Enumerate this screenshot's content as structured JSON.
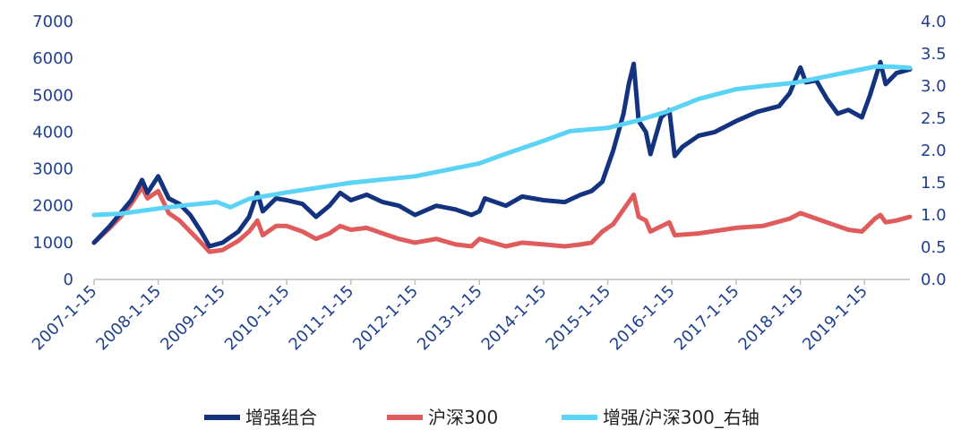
{
  "chart_data": {
    "type": "line",
    "title": "",
    "xlabel": "",
    "ylabel": "",
    "x_tick_labels": [
      "2007-1-15",
      "2008-1-15",
      "2009-1-15",
      "2010-1-15",
      "2011-1-15",
      "2012-1-15",
      "2013-1-15",
      "2014-1-15",
      "2015-1-15",
      "2016-1-15",
      "2017-1-15",
      "2018-1-15",
      "2019-1-15"
    ],
    "x_range": [
      "2007-01-15",
      "2019-09-30"
    ],
    "ylim_left": [
      0,
      7000
    ],
    "ylim_right": [
      0.0,
      4.0
    ],
    "left_ticks": [
      "0",
      "1000",
      "2000",
      "3000",
      "4000",
      "5000",
      "6000",
      "7000"
    ],
    "right_ticks": [
      "0.0",
      "0.5",
      "1.0",
      "1.5",
      "2.0",
      "2.5",
      "3.0",
      "3.5",
      "4.0"
    ],
    "grid": false,
    "legend_position": "bottom",
    "series": [
      {
        "name": "增强组合",
        "axis": "left",
        "color": "#14337f",
        "points": [
          [
            "2007-01-15",
            1000
          ],
          [
            "2007-04-15",
            1450
          ],
          [
            "2007-06-15",
            1800
          ],
          [
            "2007-08-15",
            2150
          ],
          [
            "2007-10-15",
            2700
          ],
          [
            "2007-11-15",
            2350
          ],
          [
            "2008-01-15",
            2800
          ],
          [
            "2008-03-15",
            2200
          ],
          [
            "2008-05-15",
            2050
          ],
          [
            "2008-07-15",
            1750
          ],
          [
            "2008-09-15",
            1300
          ],
          [
            "2008-11-01",
            900
          ],
          [
            "2009-01-15",
            1000
          ],
          [
            "2009-04-15",
            1300
          ],
          [
            "2009-06-15",
            1700
          ],
          [
            "2009-08-01",
            2350
          ],
          [
            "2009-09-01",
            1850
          ],
          [
            "2009-11-15",
            2200
          ],
          [
            "2010-01-15",
            2150
          ],
          [
            "2010-04-15",
            2050
          ],
          [
            "2010-07-01",
            1700
          ],
          [
            "2010-09-15",
            2000
          ],
          [
            "2010-11-15",
            2350
          ],
          [
            "2011-01-15",
            2150
          ],
          [
            "2011-04-15",
            2300
          ],
          [
            "2011-07-15",
            2100
          ],
          [
            "2011-10-15",
            2000
          ],
          [
            "2012-01-15",
            1750
          ],
          [
            "2012-05-15",
            2000
          ],
          [
            "2012-09-01",
            1900
          ],
          [
            "2012-12-01",
            1750
          ],
          [
            "2013-01-15",
            1850
          ],
          [
            "2013-02-15",
            2200
          ],
          [
            "2013-06-15",
            2000
          ],
          [
            "2013-09-15",
            2250
          ],
          [
            "2014-01-15",
            2150
          ],
          [
            "2014-05-15",
            2100
          ],
          [
            "2014-08-15",
            2300
          ],
          [
            "2014-10-15",
            2400
          ],
          [
            "2014-12-15",
            2650
          ],
          [
            "2015-02-15",
            3500
          ],
          [
            "2015-04-15",
            4500
          ],
          [
            "2015-05-15",
            5300
          ],
          [
            "2015-06-12",
            5850
          ],
          [
            "2015-07-10",
            4300
          ],
          [
            "2015-08-20",
            4000
          ],
          [
            "2015-09-15",
            3400
          ],
          [
            "2015-11-15",
            4400
          ],
          [
            "2015-12-31",
            4600
          ],
          [
            "2016-01-31",
            3350
          ],
          [
            "2016-03-15",
            3600
          ],
          [
            "2016-06-15",
            3900
          ],
          [
            "2016-09-15",
            4000
          ],
          [
            "2017-01-15",
            4300
          ],
          [
            "2017-05-15",
            4550
          ],
          [
            "2017-09-15",
            4700
          ],
          [
            "2017-11-15",
            5050
          ],
          [
            "2018-01-15",
            5750
          ],
          [
            "2018-02-15",
            5350
          ],
          [
            "2018-04-15",
            5400
          ],
          [
            "2018-06-15",
            4900
          ],
          [
            "2018-08-15",
            4500
          ],
          [
            "2018-10-15",
            4600
          ],
          [
            "2018-12-31",
            4400
          ],
          [
            "2019-02-15",
            5000
          ],
          [
            "2019-04-15",
            5900
          ],
          [
            "2019-05-15",
            5300
          ],
          [
            "2019-07-15",
            5600
          ],
          [
            "2019-09-30",
            5700
          ]
        ]
      },
      {
        "name": "沪深300",
        "axis": "left",
        "color": "#e05b5b",
        "points": [
          [
            "2007-01-15",
            1000
          ],
          [
            "2007-04-15",
            1400
          ],
          [
            "2007-06-15",
            1700
          ],
          [
            "2007-08-15",
            2050
          ],
          [
            "2007-10-15",
            2500
          ],
          [
            "2007-11-15",
            2200
          ],
          [
            "2008-01-15",
            2400
          ],
          [
            "2008-03-15",
            1800
          ],
          [
            "2008-05-15",
            1600
          ],
          [
            "2008-07-15",
            1300
          ],
          [
            "2008-09-15",
            1000
          ],
          [
            "2008-11-01",
            750
          ],
          [
            "2009-01-15",
            800
          ],
          [
            "2009-04-15",
            1050
          ],
          [
            "2009-06-15",
            1300
          ],
          [
            "2009-08-01",
            1600
          ],
          [
            "2009-09-01",
            1200
          ],
          [
            "2009-11-15",
            1450
          ],
          [
            "2010-01-15",
            1450
          ],
          [
            "2010-04-15",
            1300
          ],
          [
            "2010-07-01",
            1100
          ],
          [
            "2010-09-15",
            1250
          ],
          [
            "2010-11-15",
            1450
          ],
          [
            "2011-01-15",
            1350
          ],
          [
            "2011-04-15",
            1400
          ],
          [
            "2011-07-15",
            1250
          ],
          [
            "2011-10-15",
            1100
          ],
          [
            "2012-01-15",
            1000
          ],
          [
            "2012-05-15",
            1100
          ],
          [
            "2012-09-01",
            950
          ],
          [
            "2012-12-01",
            900
          ],
          [
            "2013-01-15",
            1100
          ],
          [
            "2013-06-15",
            900
          ],
          [
            "2013-09-15",
            1000
          ],
          [
            "2014-01-15",
            950
          ],
          [
            "2014-05-15",
            900
          ],
          [
            "2014-08-15",
            950
          ],
          [
            "2014-10-15",
            1000
          ],
          [
            "2014-12-15",
            1300
          ],
          [
            "2015-02-15",
            1500
          ],
          [
            "2015-04-15",
            1900
          ],
          [
            "2015-06-12",
            2300
          ],
          [
            "2015-07-10",
            1700
          ],
          [
            "2015-08-20",
            1600
          ],
          [
            "2015-09-15",
            1300
          ],
          [
            "2015-12-31",
            1550
          ],
          [
            "2016-01-31",
            1200
          ],
          [
            "2016-06-15",
            1250
          ],
          [
            "2017-01-15",
            1400
          ],
          [
            "2017-06-15",
            1450
          ],
          [
            "2017-11-15",
            1650
          ],
          [
            "2018-01-15",
            1800
          ],
          [
            "2018-04-15",
            1650
          ],
          [
            "2018-07-15",
            1500
          ],
          [
            "2018-10-15",
            1350
          ],
          [
            "2018-12-31",
            1300
          ],
          [
            "2019-03-15",
            1650
          ],
          [
            "2019-04-15",
            1750
          ],
          [
            "2019-05-15",
            1550
          ],
          [
            "2019-07-15",
            1600
          ],
          [
            "2019-09-30",
            1700
          ]
        ]
      },
      {
        "name": "增强/沪深300_右轴",
        "axis": "right",
        "color": "#5bd3f5",
        "points": [
          [
            "2007-01-15",
            1.0
          ],
          [
            "2007-06-15",
            1.02
          ],
          [
            "2008-01-15",
            1.1
          ],
          [
            "2008-06-15",
            1.15
          ],
          [
            "2008-12-15",
            1.2
          ],
          [
            "2009-03-01",
            1.12
          ],
          [
            "2009-06-15",
            1.25
          ],
          [
            "2010-01-15",
            1.35
          ],
          [
            "2011-01-15",
            1.5
          ],
          [
            "2012-01-15",
            1.6
          ],
          [
            "2013-01-15",
            1.8
          ],
          [
            "2013-06-15",
            1.95
          ],
          [
            "2014-01-15",
            2.15
          ],
          [
            "2014-06-15",
            2.3
          ],
          [
            "2015-01-15",
            2.35
          ],
          [
            "2015-06-15",
            2.45
          ],
          [
            "2015-12-15",
            2.6
          ],
          [
            "2016-06-15",
            2.8
          ],
          [
            "2017-01-15",
            2.95
          ],
          [
            "2017-06-15",
            3.0
          ],
          [
            "2017-12-15",
            3.05
          ],
          [
            "2018-06-15",
            3.15
          ],
          [
            "2018-12-15",
            3.25
          ],
          [
            "2019-03-15",
            3.3
          ],
          [
            "2019-06-15",
            3.3
          ],
          [
            "2019-09-30",
            3.28
          ]
        ]
      }
    ]
  }
}
